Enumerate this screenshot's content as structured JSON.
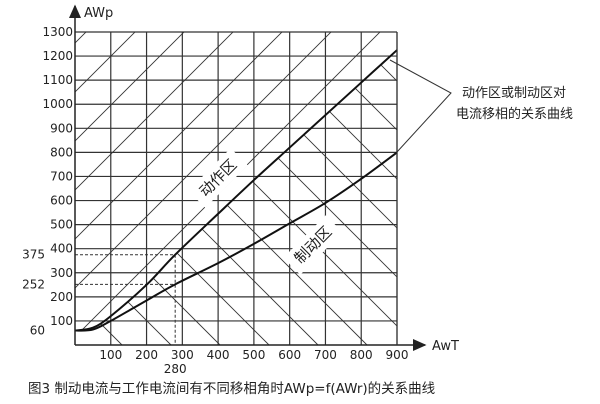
{
  "chart_data": {
    "type": "line",
    "xlabel": "AwT",
    "ylabel": "AWp",
    "xlim": [
      0,
      900
    ],
    "ylim": [
      0,
      1300
    ],
    "x_ticks": [
      100,
      200,
      280,
      300,
      400,
      500,
      600,
      700,
      800,
      900
    ],
    "y_ticks": [
      60,
      100,
      200,
      252,
      300,
      375,
      400,
      500,
      600,
      700,
      800,
      900,
      1000,
      1100,
      1200,
      1300
    ],
    "grid": true,
    "series": [
      {
        "x": [
          0,
          50,
          100,
          200,
          280,
          400,
          500,
          600,
          700,
          800,
          900
        ],
        "y": [
          60,
          72,
          120,
          250,
          375,
          545,
          685,
          820,
          955,
          1090,
          1225
        ]
      },
      {
        "x": [
          0,
          50,
          100,
          200,
          280,
          400,
          500,
          600,
          700,
          800,
          900
        ],
        "y": [
          60,
          64,
          100,
          185,
          252,
          340,
          420,
          505,
          590,
          690,
          800
        ]
      }
    ],
    "reference_lines": {
      "x": 280,
      "y": [
        375,
        252
      ]
    },
    "region_labels": [
      "动作区",
      "制动区"
    ],
    "annotation": [
      "动作区或制动区对",
      "电流移相的关系曲线"
    ],
    "caption": "图3 制动电流与工作电流间有不同移相角时AWp=f(AWr)的关系曲线"
  }
}
